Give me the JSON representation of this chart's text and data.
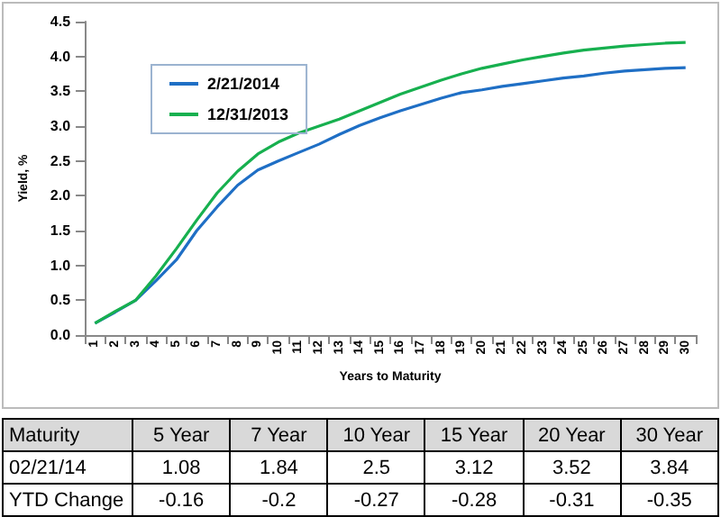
{
  "chart_data": [
    {
      "type": "line",
      "xlabel": "Years to Maturity",
      "ylabel": "Yield, %",
      "categories": [
        "1",
        "2",
        "3",
        "4",
        "5",
        "6",
        "7",
        "8",
        "9",
        "10",
        "11",
        "12",
        "13",
        "14",
        "15",
        "16",
        "17",
        "18",
        "19",
        "20",
        "21",
        "22",
        "23",
        "24",
        "25",
        "26",
        "27",
        "28",
        "29",
        "30"
      ],
      "series": [
        {
          "name": "2/21/2014",
          "color": "#1f6fc5",
          "values": [
            0.17,
            0.33,
            0.5,
            0.78,
            1.08,
            1.5,
            1.84,
            2.15,
            2.37,
            2.5,
            2.62,
            2.74,
            2.88,
            3.01,
            3.12,
            3.22,
            3.31,
            3.4,
            3.48,
            3.52,
            3.57,
            3.61,
            3.65,
            3.69,
            3.72,
            3.76,
            3.79,
            3.81,
            3.83,
            3.84
          ]
        },
        {
          "name": "12/31/2013",
          "color": "#17b04f",
          "values": [
            0.17,
            0.34,
            0.5,
            0.85,
            1.24,
            1.65,
            2.04,
            2.35,
            2.6,
            2.77,
            2.9,
            3.0,
            3.1,
            3.22,
            3.34,
            3.46,
            3.56,
            3.66,
            3.75,
            3.83,
            3.89,
            3.95,
            4.0,
            4.05,
            4.09,
            4.12,
            4.15,
            4.17,
            4.19,
            4.2
          ]
        }
      ],
      "ylim": [
        0,
        4.5
      ],
      "yticks": [
        {
          "value": 0,
          "label": "0.0"
        },
        {
          "value": 0.5,
          "label": "0.5"
        },
        {
          "value": 1,
          "label": "1.0"
        },
        {
          "value": 1.5,
          "label": "1.5"
        },
        {
          "value": 2,
          "label": "2.0"
        },
        {
          "value": 2.5,
          "label": "2.5"
        },
        {
          "value": 3,
          "label": "3.0"
        },
        {
          "value": 3.5,
          "label": "3.5"
        },
        {
          "value": 4,
          "label": "4.0"
        },
        {
          "value": 4.5,
          "label": "4.5"
        }
      ],
      "grid": false,
      "legend": "top left",
      "marker": "none",
      "line_style": "solid"
    },
    {
      "type": "other",
      "title": "Maturity",
      "data_labels": true,
      "categories": [
        "5 Year",
        "7 Year",
        "10 Year",
        "15 Year",
        "20 Year",
        "30 Year"
      ],
      "series": [
        {
          "name": "02/21/14",
          "values": [
            1.08,
            1.84,
            2.5,
            3.12,
            3.52,
            3.84
          ]
        },
        {
          "name": "YTD Change",
          "values": [
            -0.16,
            -0.2,
            -0.27,
            -0.28,
            -0.31,
            -0.35
          ]
        }
      ]
    }
  ]
}
